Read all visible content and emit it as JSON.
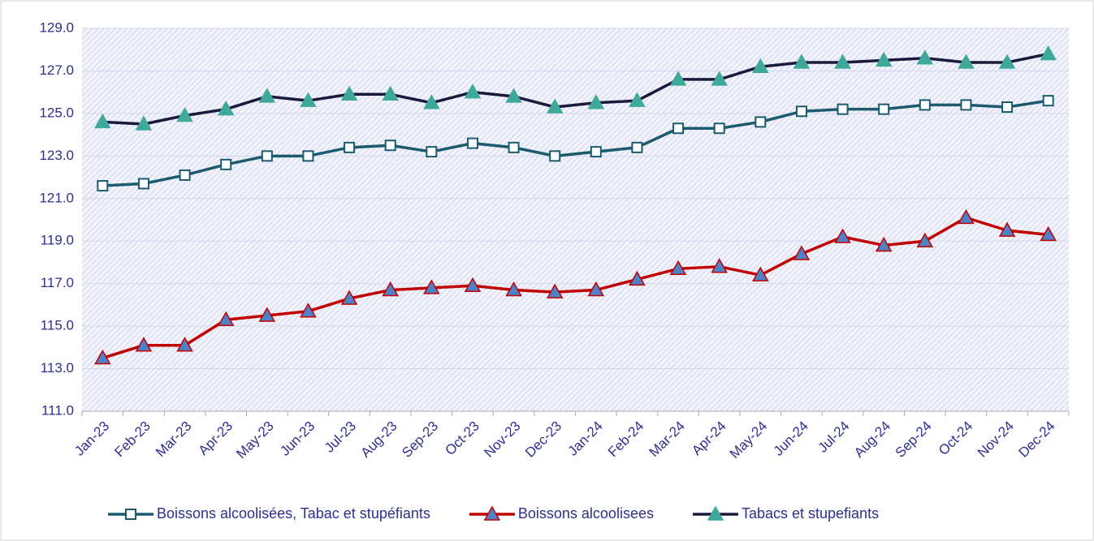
{
  "chart_data": {
    "type": "line",
    "categories": [
      "Jan-23",
      "Feb-23",
      "Mar-23",
      "Apr-23",
      "May-23",
      "Jun-23",
      "Jul-23",
      "Aug-23",
      "Sep-23",
      "Oct-23",
      "Nov-23",
      "Dec-23",
      "Jan-24",
      "Feb-24",
      "Mar-24",
      "Apr-24",
      "May-24",
      "Jun-24",
      "Jul-24",
      "Aug-24",
      "Sep-24",
      "Oct-24",
      "Nov-24",
      "Dec-24"
    ],
    "series": [
      {
        "name": "Boissons alcoolisées, Tabac et stupéfiants",
        "color": "#1b5b6e",
        "marker": "square",
        "marker_color": "#ffffff",
        "values": [
          121.6,
          121.7,
          122.1,
          122.6,
          123.0,
          123.0,
          123.4,
          123.5,
          123.2,
          123.6,
          123.4,
          123.0,
          123.2,
          123.4,
          124.3,
          124.3,
          124.6,
          125.1,
          125.2,
          125.2,
          125.4,
          125.4,
          125.3,
          125.6
        ]
      },
      {
        "name": "Boissons alcoolisees",
        "color": "#c00000",
        "marker": "triangle",
        "marker_color": "#4f81c7",
        "values": [
          113.5,
          114.1,
          114.1,
          115.3,
          115.5,
          115.7,
          116.3,
          116.7,
          116.8,
          116.9,
          116.7,
          116.6,
          116.7,
          117.2,
          117.7,
          117.8,
          117.4,
          118.4,
          119.2,
          118.8,
          119.0,
          120.1,
          119.5,
          119.3
        ]
      },
      {
        "name": "Tabacs et stupefiants",
        "color": "#1a1a3c",
        "marker": "triangle",
        "marker_color": "#3ea99b",
        "values": [
          124.6,
          124.5,
          124.9,
          125.2,
          125.8,
          125.6,
          125.9,
          125.9,
          125.5,
          126.0,
          125.8,
          125.3,
          125.5,
          125.6,
          126.6,
          126.6,
          127.2,
          127.4,
          127.4,
          127.5,
          127.6,
          127.4,
          127.4,
          127.8
        ]
      }
    ],
    "ylim": [
      111,
      129
    ],
    "yticks": [
      {
        "value": 111,
        "label": "111.0"
      },
      {
        "value": 113,
        "label": "113.0"
      },
      {
        "value": 115,
        "label": "115.0"
      },
      {
        "value": 117,
        "label": "117.0"
      },
      {
        "value": 119,
        "label": "119.0"
      },
      {
        "value": 121,
        "label": "121.0"
      },
      {
        "value": 123,
        "label": "123.0"
      },
      {
        "value": 125,
        "label": "125.0"
      },
      {
        "value": 127,
        "label": "127.0"
      },
      {
        "value": 129,
        "label": "129.0"
      }
    ],
    "grid": true,
    "legend": "bottom"
  }
}
